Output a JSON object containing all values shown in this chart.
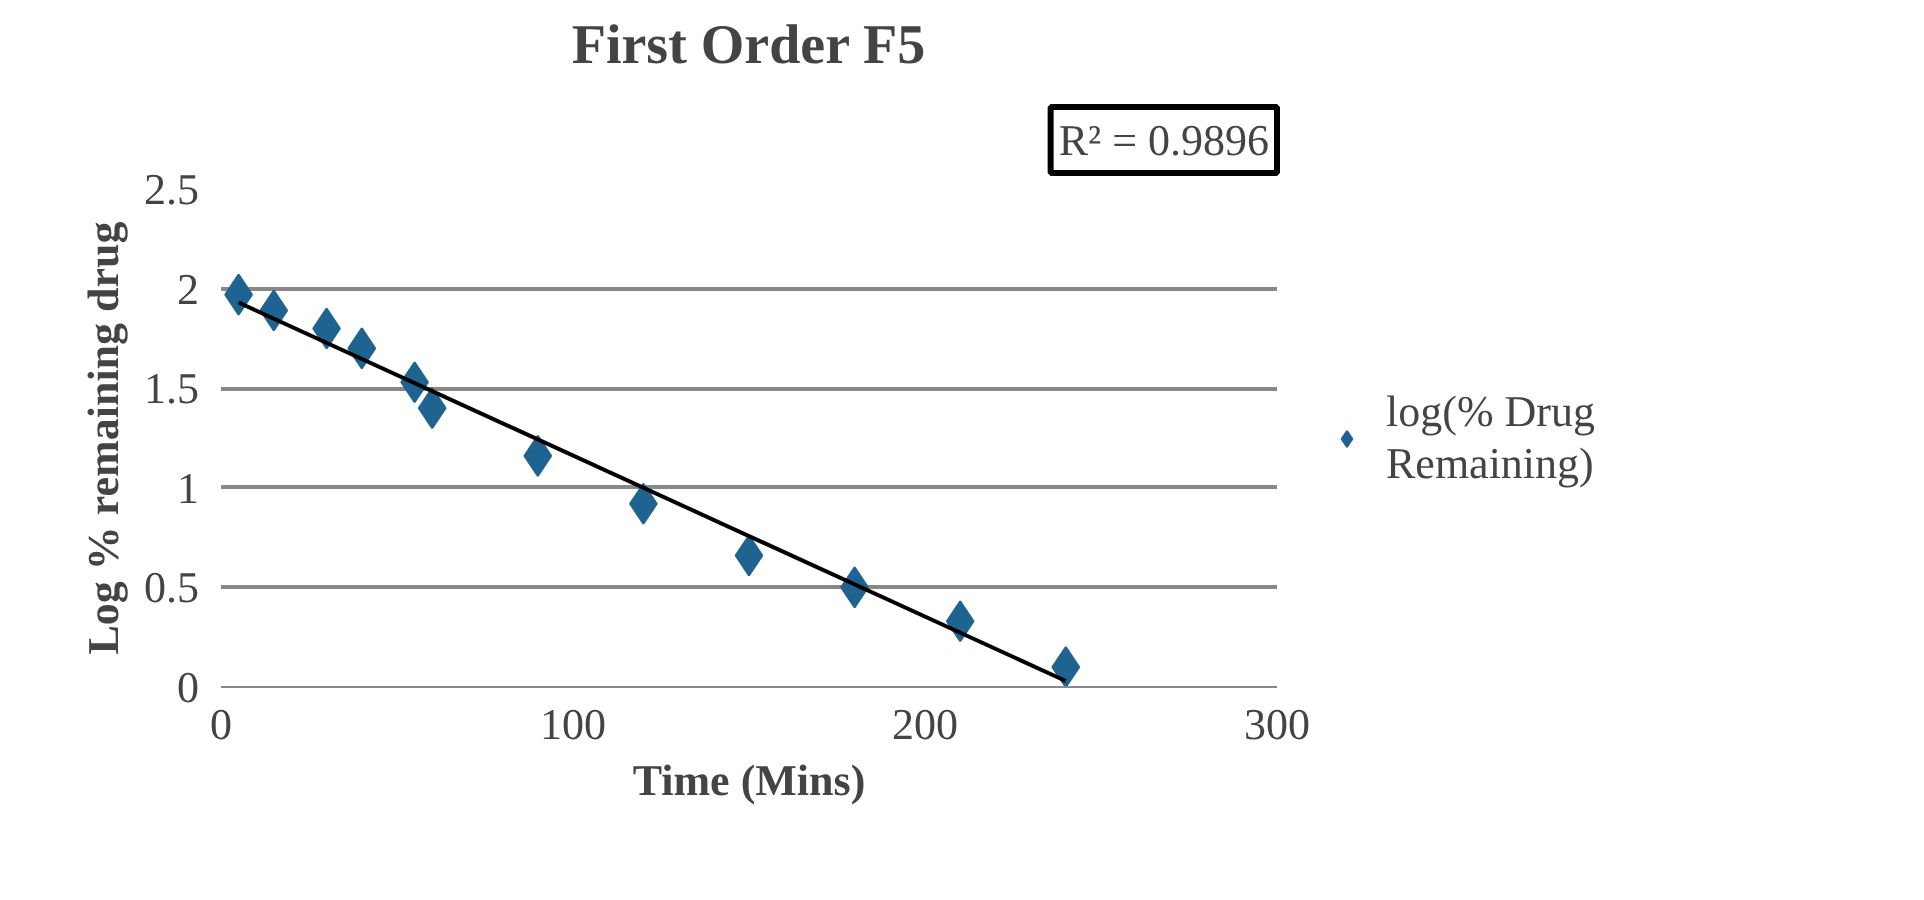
{
  "chart_data": {
    "type": "scatter",
    "title": "First Order F5",
    "xlabel": "Time (Mins)",
    "ylabel": "Log % remaining drug",
    "xlim": [
      0,
      300
    ],
    "xticks": [
      0,
      100,
      200,
      300
    ],
    "ylim": [
      0,
      2.5
    ],
    "yticks": [
      0,
      0.5,
      1,
      1.5,
      2,
      2.5
    ],
    "grid": "y",
    "legend": "right",
    "marker": "diamond",
    "annotations": [
      "R² = 0.9896"
    ],
    "series": [
      {
        "name": "log(% Drug Remaining)",
        "color": "#1f6391",
        "x": [
          5,
          15,
          30,
          40,
          55,
          60,
          90,
          120,
          150,
          180,
          210,
          240
        ],
        "values": [
          1.97,
          1.89,
          1.8,
          1.7,
          1.53,
          1.4,
          1.16,
          0.92,
          0.66,
          0.5,
          0.33,
          0.1
        ]
      },
      {
        "type": "line",
        "marker": "none",
        "color": "#000000",
        "x": [
          5,
          240
        ],
        "values": [
          1.93,
          0.03
        ]
      }
    ]
  }
}
